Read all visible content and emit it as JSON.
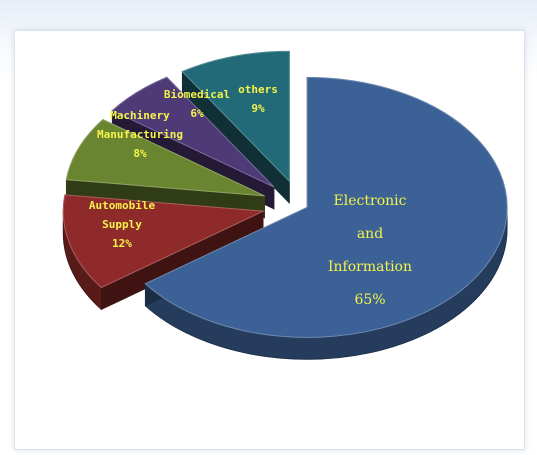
{
  "chart_data": {
    "type": "pie",
    "title": "",
    "exploded": true,
    "three_d": true,
    "categories": [
      "Electronic and Information",
      "Automobile Supply",
      "Machinery Manufacturing",
      "Biomedical",
      "others"
    ],
    "values": [
      65,
      12,
      8,
      6,
      9
    ],
    "colors": [
      "#3c6196",
      "#8f2a2a",
      "#6a8530",
      "#4f3a78",
      "#236a78"
    ],
    "label_color": "#f3f34a",
    "labels": [
      {
        "lines": [
          "Electronic",
          "and",
          "Information",
          "65%"
        ]
      },
      {
        "lines": [
          "Automobile",
          "Supply",
          "12%"
        ]
      },
      {
        "lines": [
          "Machinery",
          "Manufacturing",
          "8%"
        ]
      },
      {
        "lines": [
          "Biomedical",
          "6%"
        ]
      },
      {
        "lines": [
          "others",
          "9%"
        ]
      }
    ]
  }
}
